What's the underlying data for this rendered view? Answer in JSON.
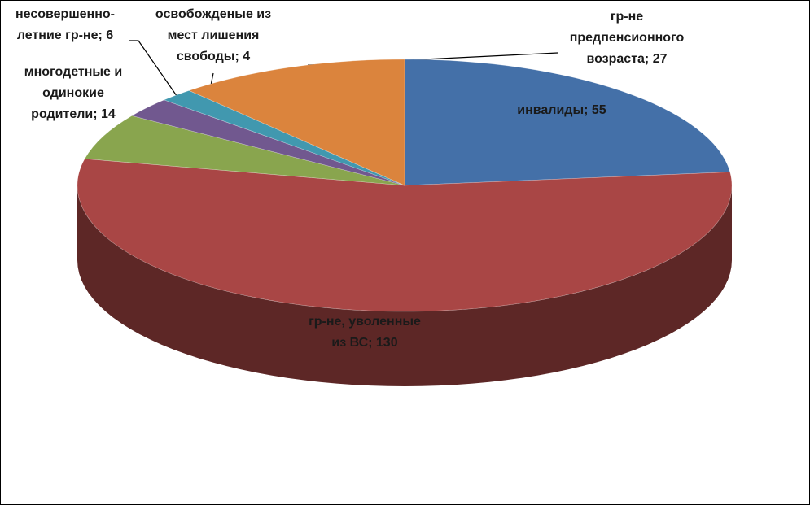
{
  "chart_data": {
    "type": "pie",
    "values": [
      55,
      130,
      14,
      6,
      4,
      27
    ],
    "value_labels": [
      "инвалиды; 55",
      "гр-не, уволенные\nиз ВС; 130",
      "многодетные и\nодинокие\nродители; 14",
      "несовершенно-\nлетние гр-не; 6",
      "освобожденые из\nмест лишения\nсвободы; 4",
      "гр-не\nпредпенсионного\nвозраста; 27"
    ],
    "colors": [
      "#4470a8",
      "#a94645",
      "#89a54e",
      "#71588f",
      "#4198af",
      "#db843d"
    ]
  }
}
